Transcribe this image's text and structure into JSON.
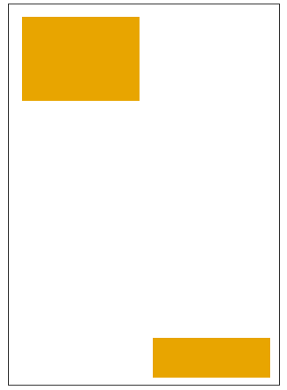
{
  "colors": {
    "frame_border": "#333333",
    "background": "#ffffff",
    "block_fill": "#e8a500"
  },
  "blocks": [
    {
      "name": "top-left-block",
      "color": "#e8a500"
    },
    {
      "name": "bottom-right-block",
      "color": "#e8a500"
    }
  ]
}
